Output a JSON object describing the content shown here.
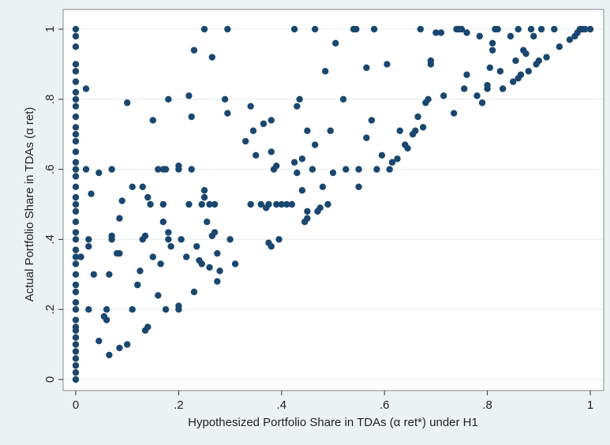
{
  "chart_data": {
    "type": "scatter",
    "xlabel": "Hypothesized Portfolio Share in TDAs (α ret*) under H1",
    "ylabel": "Actual Portfolio Share in TDAs (α ret)",
    "xlim": [
      0,
      1
    ],
    "ylim": [
      0,
      1
    ],
    "xticks": [
      0,
      {
        "value": 0.2,
        "label": ".2"
      },
      {
        "value": 0.4,
        "label": ".4"
      },
      {
        "value": 0.6,
        "label": ".6"
      },
      {
        "value": 0.8,
        "label": ".8"
      },
      1
    ],
    "yticks": [
      0,
      {
        "value": 0.2,
        "label": ".2"
      },
      {
        "value": 0.4,
        "label": ".4"
      },
      {
        "value": 0.6,
        "label": ".6"
      },
      {
        "value": 0.8,
        "label": ".8"
      },
      1
    ],
    "grid": true,
    "color": "#1a476f",
    "x": [
      0,
      0,
      0,
      0,
      0,
      0,
      0,
      0,
      0,
      0,
      0,
      0,
      0,
      0,
      0,
      0,
      0,
      0,
      0,
      0,
      0,
      0,
      0,
      0,
      0,
      0,
      0,
      0,
      0,
      0,
      0,
      0,
      0,
      0,
      0,
      0,
      0,
      0,
      0,
      0,
      0,
      0,
      0.01,
      0.02,
      0.02,
      0.03,
      0.025,
      0.025,
      0.025,
      0.035,
      0.045,
      0.045,
      0.055,
      0.06,
      0.06,
      0.065,
      0.065,
      0.07,
      0.07,
      0.07,
      0.08,
      0.085,
      0.085,
      0.085,
      0.09,
      0.1,
      0.1,
      0.11,
      0.11,
      0.12,
      0.125,
      0.13,
      0.13,
      0.135,
      0.135,
      0.14,
      0.14,
      0.145,
      0.15,
      0.15,
      0.16,
      0.16,
      0.165,
      0.17,
      0.17,
      0.17,
      0.175,
      0.175,
      0.18,
      0.18,
      0.18,
      0.185,
      0.2,
      0.2,
      0.2,
      0.2,
      0.205,
      0.215,
      0.22,
      0.22,
      0.225,
      0.225,
      0.23,
      0.23,
      0.235,
      0.24,
      0.245,
      0.245,
      0.25,
      0.25,
      0.25,
      0.255,
      0.26,
      0.26,
      0.265,
      0.265,
      0.27,
      0.27,
      0.275,
      0.275,
      0.28,
      0.29,
      0.295,
      0.295,
      0.3,
      0.31,
      0.33,
      0.34,
      0.34,
      0.345,
      0.35,
      0.36,
      0.365,
      0.37,
      0.375,
      0.375,
      0.38,
      0.38,
      0.38,
      0.385,
      0.39,
      0.39,
      0.395,
      0.4,
      0.41,
      0.42,
      0.425,
      0.425,
      0.43,
      0.43,
      0.435,
      0.44,
      0.44,
      0.445,
      0.45,
      0.45,
      0.45,
      0.46,
      0.465,
      0.465,
      0.47,
      0.475,
      0.48,
      0.485,
      0.49,
      0.495,
      0.5,
      0.505,
      0.52,
      0.525,
      0.54,
      0.545,
      0.55,
      0.55,
      0.565,
      0.565,
      0.575,
      0.58,
      0.585,
      0.595,
      0.605,
      0.61,
      0.615,
      0.625,
      0.63,
      0.64,
      0.645,
      0.655,
      0.66,
      0.665,
      0.67,
      0.675,
      0.68,
      0.685,
      0.69,
      0.69,
      0.7,
      0.71,
      0.715,
      0.735,
      0.74,
      0.745,
      0.75,
      0.755,
      0.76,
      0.76,
      0.78,
      0.785,
      0.79,
      0.8,
      0.8,
      0.805,
      0.81,
      0.81,
      0.815,
      0.82,
      0.825,
      0.83,
      0.845,
      0.85,
      0.855,
      0.86,
      0.86,
      0.865,
      0.87,
      0.875,
      0.88,
      0.885,
      0.89,
      0.895,
      0.9,
      0.905,
      0.915,
      0.93,
      0.94,
      0.96,
      0.97,
      0.975,
      0.98,
      0.985,
      0.99,
      1
    ],
    "values": [
      0,
      0.02,
      0.04,
      0.06,
      0.08,
      0.1,
      0.12,
      0.14,
      0.15,
      0.17,
      0.2,
      0.22,
      0.25,
      0.27,
      0.3,
      0.33,
      0.35,
      0.37,
      0.4,
      0.42,
      0.45,
      0.48,
      0.5,
      0.52,
      0.55,
      0.58,
      0.6,
      0.62,
      0.65,
      0.68,
      0.7,
      0.72,
      0.75,
      0.78,
      0.8,
      0.82,
      0.85,
      0.88,
      0.9,
      0.95,
      0.98,
      1,
      0.35,
      0.83,
      0.6,
      0.53,
      0.4,
      0.38,
      0.2,
      0.3,
      0.11,
      0.59,
      0.18,
      0.17,
      0.2,
      0.3,
      0.07,
      0.4,
      0.41,
      0.6,
      0.36,
      0.36,
      0.09,
      0.46,
      0.51,
      0.79,
      0.1,
      0.55,
      0.2,
      0.27,
      0.31,
      0.55,
      0.4,
      0.41,
      0.14,
      0.15,
      0.52,
      0.5,
      0.74,
      0.35,
      0.24,
      0.6,
      0.33,
      0.6,
      0.45,
      0.5,
      0.6,
      0.2,
      0.42,
      0.4,
      0.8,
      0.38,
      0.6,
      0.61,
      0.2,
      0.21,
      0.4,
      0.35,
      0.5,
      0.81,
      0.6,
      0.75,
      0.94,
      0.25,
      0.38,
      0.34,
      0.5,
      0.33,
      1,
      0.54,
      0.52,
      0.45,
      0.5,
      0.32,
      0.92,
      0.41,
      0.5,
      0.42,
      0.28,
      0.36,
      0.31,
      0.8,
      1,
      0.76,
      0.4,
      0.33,
      0.68,
      0.5,
      0.78,
      0.71,
      0.64,
      0.5,
      0.73,
      0.49,
      0.5,
      0.39,
      0.38,
      0.74,
      0.65,
      0.6,
      0.61,
      0.5,
      0.4,
      0.5,
      0.5,
      0.5,
      1,
      0.62,
      0.59,
      0.78,
      0.8,
      0.54,
      0.63,
      0.45,
      0.48,
      0.46,
      0.71,
      0.6,
      1,
      0.67,
      0.48,
      0.49,
      0.55,
      0.88,
      0.5,
      0.71,
      0.59,
      0.96,
      0.8,
      0.6,
      1,
      1,
      0.55,
      0.6,
      0.69,
      0.89,
      0.74,
      1,
      0.6,
      0.64,
      0.9,
      0.6,
      0.62,
      0.63,
      0.71,
      0.67,
      0.66,
      0.7,
      0.71,
      0.75,
      1,
      0.72,
      0.79,
      0.8,
      0.91,
      0.9,
      0.99,
      0.99,
      0.81,
      0.76,
      1,
      1,
      1,
      0.83,
      0.87,
      0.99,
      0.81,
      0.98,
      0.79,
      0.83,
      0.84,
      0.89,
      0.96,
      0.94,
      1,
      1,
      0.88,
      0.83,
      0.98,
      0.85,
      0.91,
      1,
      0.86,
      0.87,
      0.94,
      0.93,
      0.88,
      1,
      0.98,
      0.9,
      0.91,
      1,
      0.92,
      1,
      0.95,
      0.97,
      0.98,
      0.99,
      1,
      1,
      1,
      1
    ]
  }
}
